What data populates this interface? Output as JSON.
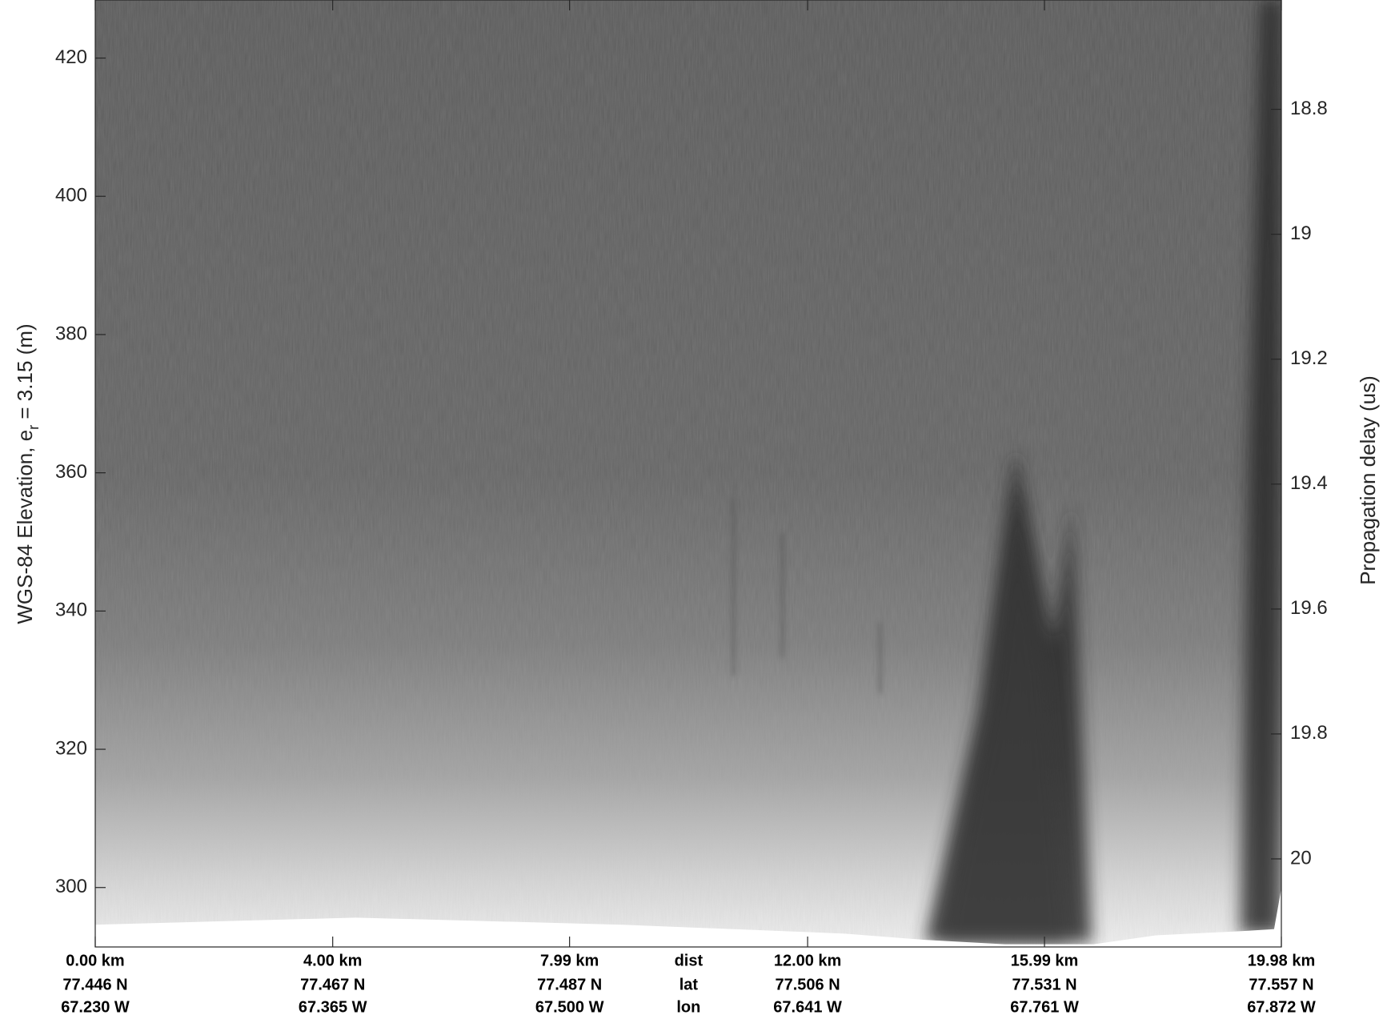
{
  "chart_data": {
    "type": "image",
    "ylabel": [
      "WGS-84 Elevation, e",
      "r",
      " = 3.15 (m)"
    ],
    "y2label": "Propagation delay (us)",
    "xlim": [
      0,
      19.98
    ],
    "ylim": [
      291.4,
      428.4
    ],
    "yticks": [
      300,
      320,
      340,
      360,
      380,
      400,
      420
    ],
    "y2lim": [
      20.141,
      18.625
    ],
    "y2ticks": [
      18.8,
      19,
      19.2,
      19.4,
      19.6,
      19.8,
      20
    ],
    "xticks": [
      {
        "value": 0,
        "label": "0.00 km"
      },
      {
        "value": 4,
        "label": "4.00 km"
      },
      {
        "value": 7.99,
        "label": "7.99 km"
      },
      {
        "value": 12,
        "label": "12.00 km"
      },
      {
        "value": 15.99,
        "label": "15.99 km"
      },
      {
        "value": 19.98,
        "label": "19.98 km"
      }
    ],
    "lat_labels": [
      "77.446 N",
      "77.467 N",
      "77.487 N",
      "77.506 N",
      "77.531 N",
      "77.557 N"
    ],
    "lon_labels": [
      "67.230 W",
      "67.365 W",
      "67.500 W",
      "67.641 W",
      "67.761 W",
      "67.872 W"
    ],
    "row_names": [
      "dist",
      "lat",
      "lon"
    ]
  }
}
